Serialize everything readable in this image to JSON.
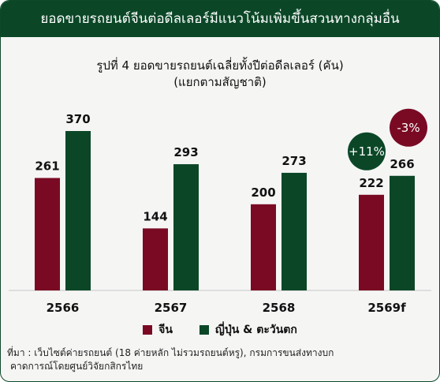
{
  "header": {
    "title": "ยอดขายรถยนต์จีนต่อดีลเลอร์มีแนวโน้มเพิ่มขึ้นสวนทางกลุ่มอื่น"
  },
  "chart_data": {
    "type": "bar",
    "title": "รูปที่ 4 ยอดขายรถยนต์เฉลี่ยทั้งปีต่อดีลเลอร์ (คัน)",
    "subtitle": "(แยกตามสัญชาติ)",
    "categories": [
      "2566",
      "2567",
      "2568",
      "2569f"
    ],
    "series": [
      {
        "name": "จีน",
        "values": [
          261,
          144,
          200,
          222
        ],
        "color": "#7a0a23"
      },
      {
        "name": "ญี่ปุ่น & ตะวันตก",
        "values": [
          370,
          293,
          273,
          266
        ],
        "color": "#0b4727"
      }
    ],
    "annotations": [
      {
        "text": "+11%",
        "series": 0,
        "category": "2569f",
        "color": "#0b4727"
      },
      {
        "text": "-3%",
        "series": 1,
        "category": "2569f",
        "color": "#7a0a23"
      }
    ],
    "ylim": [
      0,
      370
    ],
    "grid": false,
    "legend": "bottom"
  },
  "source": {
    "line1": "ที่มา : เว็บไซต์ค่ายรถยนต์ (18 ค่ายหลัก ไม่รวมรถยนต์หรู), กรมการขนส่งทางบก",
    "line2": "คาดการณ์โดยศูนย์วิจัยกสิกรไทย"
  }
}
